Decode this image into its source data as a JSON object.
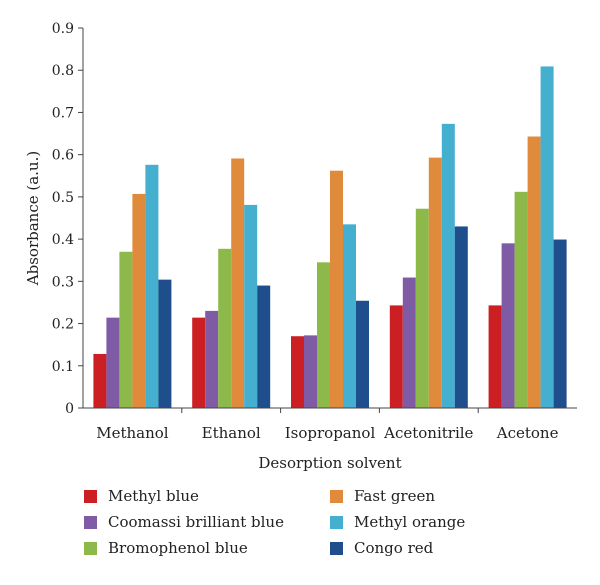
{
  "chart_data": {
    "type": "bar",
    "title": "",
    "xlabel": "Desorption solvent",
    "ylabel": "Absorbance (a.u.)",
    "ylim": [
      0,
      0.9
    ],
    "yticks": [
      "0",
      "0.1",
      "0.2",
      "0.3",
      "0.4",
      "0.5",
      "0.6",
      "0.7",
      "0.8",
      "0.9"
    ],
    "grid": false,
    "legend_position": "bottom",
    "categories": [
      "Methanol",
      "Ethanol",
      "Isopropanol",
      "Acetonitrile",
      "Acetone"
    ],
    "series": [
      {
        "name": "Methyl blue",
        "color": "#cc1f24",
        "values": [
          0.128,
          0.214,
          0.17,
          0.243,
          0.243
        ]
      },
      {
        "name": "Coomassi brilliant blue",
        "color": "#7f5ba6",
        "values": [
          0.214,
          0.23,
          0.172,
          0.309,
          0.39
        ]
      },
      {
        "name": "Bromophenol blue",
        "color": "#8db84a",
        "values": [
          0.37,
          0.377,
          0.345,
          0.472,
          0.512
        ]
      },
      {
        "name": "Fast green",
        "color": "#e08b3b",
        "values": [
          0.507,
          0.591,
          0.562,
          0.593,
          0.643
        ]
      },
      {
        "name": "Methyl orange",
        "color": "#45afd0",
        "values": [
          0.576,
          0.481,
          0.435,
          0.673,
          0.809
        ]
      },
      {
        "name": "Congo red",
        "color": "#1f4e8c",
        "values": [
          0.304,
          0.29,
          0.254,
          0.43,
          0.399
        ]
      }
    ]
  }
}
